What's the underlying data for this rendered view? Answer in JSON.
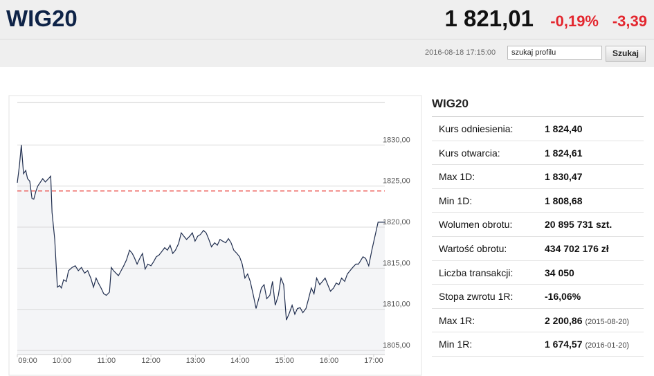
{
  "header": {
    "title": "WIG20",
    "price": "1 821,01",
    "change_pct": "-0,19%",
    "change": "-3,39",
    "timestamp": "2016-08-18 17:15:00",
    "search_placeholder": "szukaj profilu",
    "search_button": "Szukaj"
  },
  "chart_data": {
    "type": "line",
    "color": "#1f2d4e",
    "fill": "#f4f5f7",
    "x": [
      9.0,
      9.05,
      9.09,
      9.14,
      9.19,
      9.23,
      9.28,
      9.33,
      9.37,
      9.42,
      9.46,
      9.51,
      9.57,
      9.63,
      9.7,
      9.75,
      9.78,
      9.84,
      9.9,
      9.95,
      9.99,
      10.04,
      10.1,
      10.15,
      10.23,
      10.3,
      10.37,
      10.44,
      10.51,
      10.58,
      10.65,
      10.71,
      10.77,
      10.82,
      10.88,
      10.94,
      11.0,
      11.07,
      11.11,
      11.16,
      11.27,
      11.33,
      11.39,
      11.45,
      11.52,
      11.58,
      11.62,
      11.69,
      11.75,
      11.81,
      11.87,
      11.93,
      12.0,
      12.06,
      12.12,
      12.18,
      12.24,
      12.31,
      12.37,
      12.43,
      12.49,
      12.55,
      12.62,
      12.68,
      12.74,
      12.8,
      12.87,
      12.93,
      12.99,
      13.05,
      13.11,
      13.18,
      13.24,
      13.3,
      13.36,
      13.43,
      13.49,
      13.55,
      13.61,
      13.68,
      13.74,
      13.8,
      13.86,
      13.93,
      13.99,
      14.05,
      14.11,
      14.17,
      14.23,
      14.3,
      14.36,
      14.42,
      14.48,
      14.54,
      14.6,
      14.67,
      14.73,
      14.79,
      14.86,
      14.92,
      14.98,
      15.04,
      15.11,
      15.17,
      15.23,
      15.29,
      15.35,
      15.41,
      15.48,
      15.54,
      15.6,
      15.66,
      15.72,
      15.79,
      15.85,
      15.91,
      15.97,
      16.03,
      16.1,
      16.16,
      16.22,
      16.28,
      16.35,
      16.41,
      16.47,
      16.53,
      16.6,
      16.66,
      16.76,
      16.82,
      16.89,
      16.96,
      17.03,
      17.1,
      17.16,
      17.25
    ],
    "values": [
      1825.4,
      1827.6,
      1830.0,
      1826.5,
      1826.9,
      1825.9,
      1825.6,
      1823.5,
      1823.4,
      1824.4,
      1825.0,
      1825.4,
      1825.9,
      1825.5,
      1825.9,
      1826.2,
      1821.8,
      1818.5,
      1812.7,
      1812.9,
      1812.6,
      1813.6,
      1813.4,
      1814.7,
      1815.1,
      1815.3,
      1814.7,
      1815.1,
      1814.4,
      1814.7,
      1813.8,
      1812.7,
      1813.8,
      1813.2,
      1812.6,
      1811.9,
      1811.7,
      1812.1,
      1815.1,
      1814.7,
      1814.1,
      1814.7,
      1815.3,
      1816.0,
      1817.2,
      1816.8,
      1816.4,
      1815.5,
      1816.2,
      1816.8,
      1814.9,
      1815.5,
      1815.3,
      1815.8,
      1816.4,
      1816.6,
      1817.0,
      1817.5,
      1817.2,
      1817.8,
      1816.8,
      1817.2,
      1818.0,
      1819.3,
      1818.9,
      1818.5,
      1818.9,
      1819.3,
      1818.3,
      1818.9,
      1819.1,
      1819.6,
      1819.3,
      1818.5,
      1817.6,
      1818.1,
      1817.8,
      1818.5,
      1818.3,
      1818.1,
      1818.6,
      1818.1,
      1817.2,
      1816.8,
      1816.4,
      1815.5,
      1813.8,
      1814.3,
      1813.4,
      1811.7,
      1810.1,
      1811.3,
      1812.6,
      1813.0,
      1811.3,
      1811.7,
      1813.4,
      1810.5,
      1811.7,
      1813.8,
      1813.0,
      1808.7,
      1809.6,
      1810.5,
      1809.4,
      1810.1,
      1810.2,
      1809.6,
      1810.1,
      1811.3,
      1812.6,
      1811.9,
      1813.8,
      1813.0,
      1813.4,
      1813.8,
      1813.0,
      1812.2,
      1812.6,
      1813.2,
      1813.0,
      1813.8,
      1813.4,
      1814.3,
      1814.7,
      1815.1,
      1815.5,
      1815.5,
      1816.4,
      1816.2,
      1815.3,
      1817.2,
      1818.9,
      1820.6,
      1820.6,
      1820.6
    ],
    "reference_value": 1824.4,
    "reference_color": "#e8332f",
    "xlim": [
      9,
      17.25
    ],
    "ylim": [
      1804.5,
      1835
    ],
    "xticks": [
      {
        "value": 9,
        "label": "09:00"
      },
      {
        "value": 10,
        "label": "10:00"
      },
      {
        "value": 11,
        "label": "11:00"
      },
      {
        "value": 12,
        "label": "12:00"
      },
      {
        "value": 13,
        "label": "13:00"
      },
      {
        "value": 14,
        "label": "14:00"
      },
      {
        "value": 15,
        "label": "15:00"
      },
      {
        "value": 16,
        "label": "16:00"
      },
      {
        "value": 17,
        "label": "17:00"
      }
    ],
    "yticks": [
      {
        "value": 1805,
        "label": "1805,00"
      },
      {
        "value": 1810,
        "label": "1810,00"
      },
      {
        "value": 1815,
        "label": "1815,00"
      },
      {
        "value": 1820,
        "label": "1820,00"
      },
      {
        "value": 1825,
        "label": "1825,00"
      },
      {
        "value": 1830,
        "label": "1830,00"
      }
    ],
    "grid": true
  },
  "table": {
    "title": "WIG20",
    "rows": [
      {
        "label": "Kurs odniesienia:",
        "value": "1 824,40"
      },
      {
        "label": "Kurs otwarcia:",
        "value": "1 824,61"
      },
      {
        "label": "Max 1D:",
        "value": "1 830,47"
      },
      {
        "label": "Min 1D:",
        "value": "1 808,68"
      },
      {
        "label": "Wolumen obrotu:",
        "value": "20 895 731 szt."
      },
      {
        "label": "Wartość obrotu:",
        "value": "434 702 176 zł"
      },
      {
        "label": "Liczba transakcji:",
        "value": "34 050"
      },
      {
        "label": "Stopa zwrotu 1R:",
        "value": "-16,06%"
      },
      {
        "label": "Max 1R:",
        "value": "2 200,86",
        "note": "(2015-08-20)"
      },
      {
        "label": "Min 1R:",
        "value": "1 674,57",
        "note": "(2016-01-20)"
      }
    ]
  }
}
